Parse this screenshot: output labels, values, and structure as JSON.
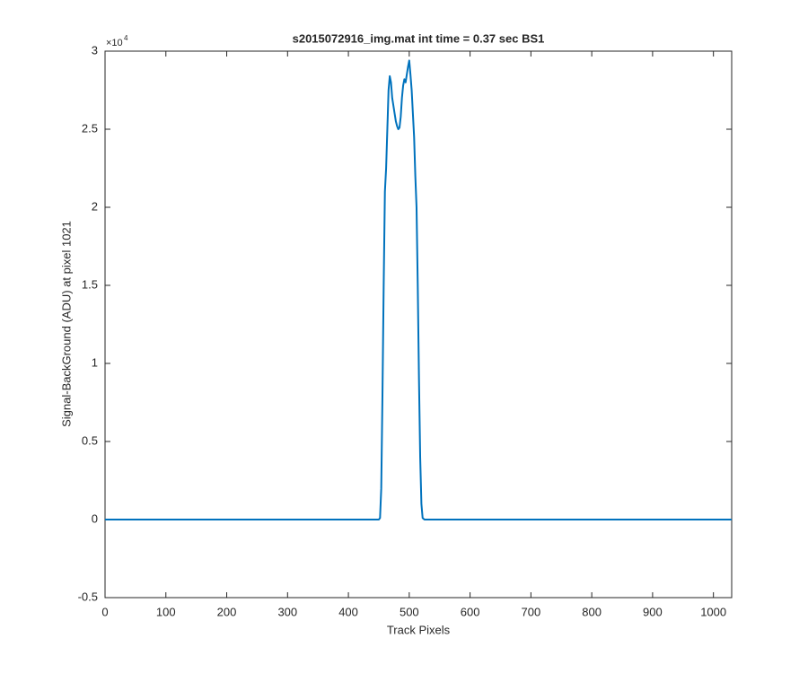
{
  "chart_data": {
    "type": "line",
    "title": "s2015072916_img.mat int time = 0.37 sec   BS1",
    "x_label": "Track Pixels",
    "y_label": "Signal-BackGround (ADU) at pixel 1021",
    "y_exponent": "×10",
    "y_exponent_power": "4",
    "x": [
      0,
      100,
      200,
      300,
      400,
      450,
      452,
      454,
      456,
      458,
      460,
      462,
      464,
      466,
      468,
      470,
      472,
      474,
      476,
      478,
      480,
      482,
      484,
      486,
      488,
      490,
      492,
      494,
      496,
      498,
      500,
      502,
      504,
      506,
      508,
      510,
      512,
      514,
      516,
      518,
      520,
      522,
      525,
      600,
      700,
      800,
      900,
      1000,
      1030
    ],
    "series": [
      {
        "color": "#0072bd",
        "values": [
          0,
          0,
          0,
          0,
          0,
          0,
          100,
          2000,
          8000,
          15000,
          21000,
          22500,
          25000,
          27500,
          28400,
          28000,
          27000,
          26500,
          26000,
          25500,
          25200,
          25000,
          25100,
          25800,
          27000,
          27800,
          28200,
          28000,
          28500,
          29000,
          29400,
          28500,
          27500,
          26000,
          24500,
          22000,
          20000,
          15000,
          9000,
          4000,
          1000,
          100,
          0,
          0,
          0,
          0,
          0,
          0,
          0
        ]
      }
    ],
    "xlim": [
      0,
      1030
    ],
    "xticks": [
      0,
      100,
      200,
      300,
      400,
      500,
      600,
      700,
      800,
      900,
      1000
    ],
    "ylim": [
      -5000,
      30000
    ],
    "yticks": [
      {
        "value": -5000,
        "label": "-0.5"
      },
      {
        "value": 0,
        "label": "0"
      },
      {
        "value": 5000,
        "label": "0.5"
      },
      {
        "value": 10000,
        "label": "1"
      },
      {
        "value": 15000,
        "label": "1.5"
      },
      {
        "value": 20000,
        "label": "2"
      },
      {
        "value": 25000,
        "label": "2.5"
      },
      {
        "value": 30000,
        "label": "3"
      }
    ],
    "grid": false
  }
}
